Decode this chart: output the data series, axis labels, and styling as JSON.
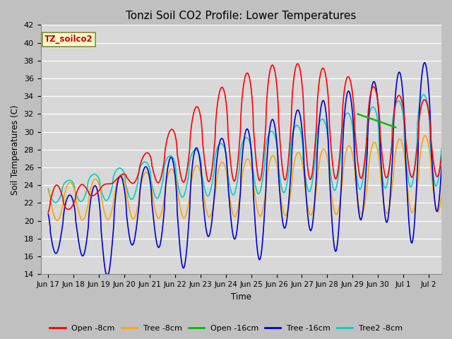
{
  "title": "Tonzi Soil CO2 Profile: Lower Temperatures",
  "ylabel": "Soil Temperatures (C)",
  "xlabel": "Time",
  "ylim": [
    14,
    42
  ],
  "legend_label": "TZ_soilco2",
  "x_tick_labels": [
    "Jun 17",
    "Jun 18",
    "Jun 19",
    "Jun 20",
    "Jun 21",
    "Jun 22",
    "Jun 23",
    "Jun 24",
    "Jun 25",
    "Jun 26",
    "Jun 27",
    "Jun 28",
    "Jun 29",
    "Jun 30",
    "Jul 1",
    "Jul 2"
  ],
  "series": {
    "Open -8cm": {
      "color": "#ff0000",
      "lw": 1.2
    },
    "Tree -8cm": {
      "color": "#ffa500",
      "lw": 1.2
    },
    "Open -16cm": {
      "color": "#00bb00",
      "lw": 1.2
    },
    "Tree -16cm": {
      "color": "#0000cc",
      "lw": 1.2
    },
    "Tree2 -8cm": {
      "color": "#00cccc",
      "lw": 1.2
    }
  }
}
